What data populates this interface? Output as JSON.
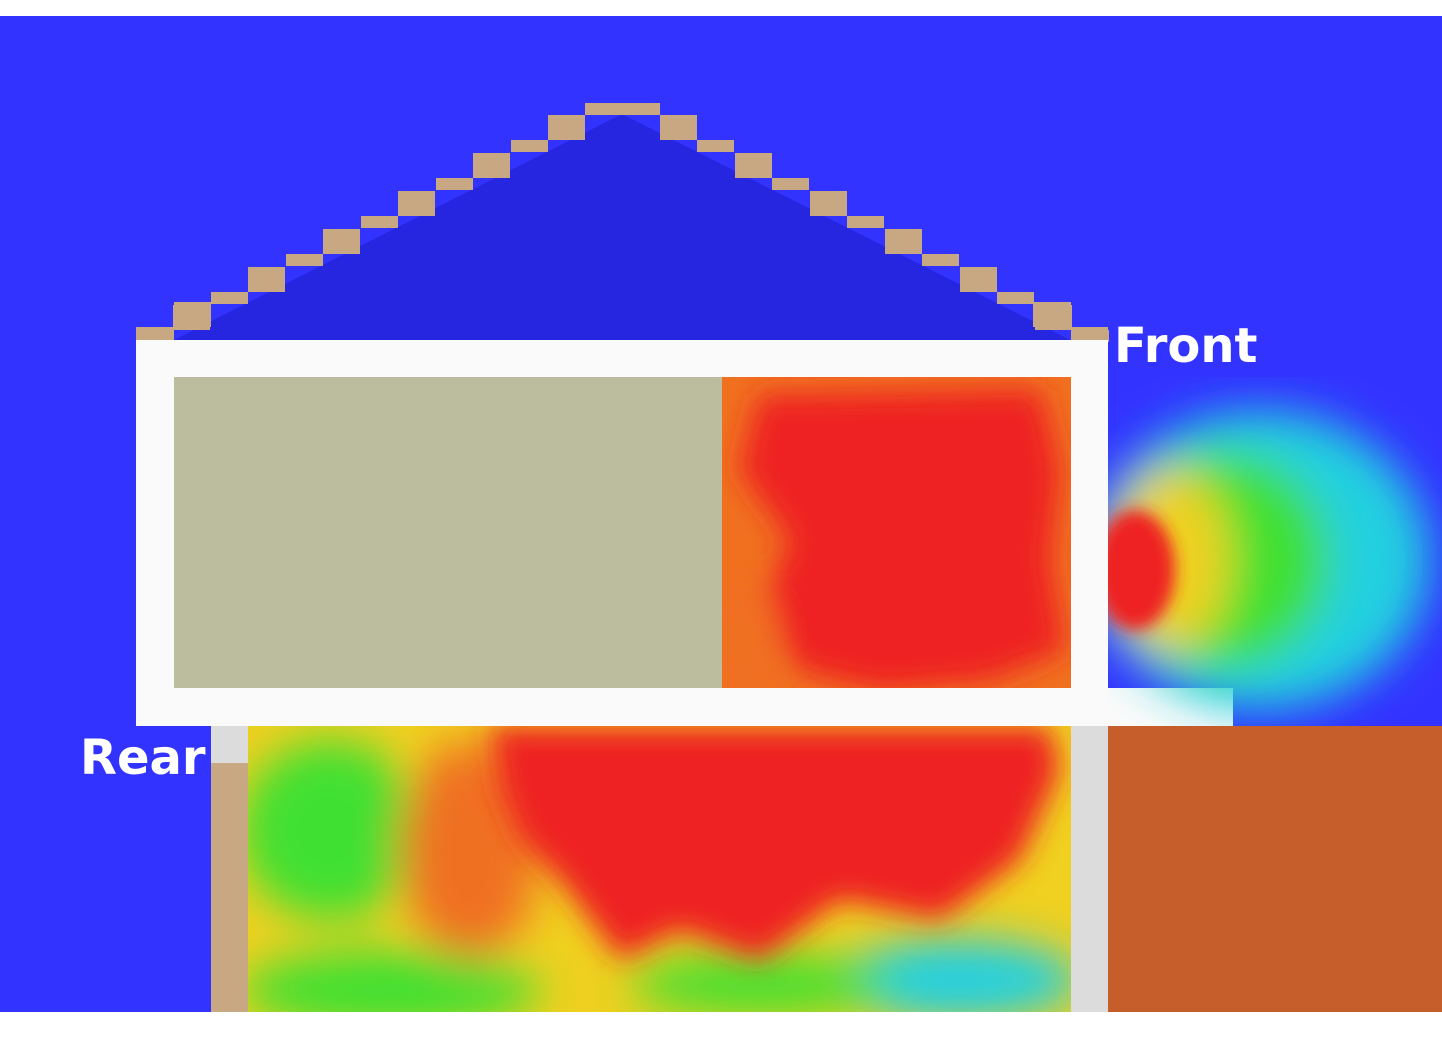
{
  "labels": {
    "front": "Front",
    "rear": "Rear"
  },
  "colors": {
    "sky": "#3333ff",
    "attic": "#2626e0",
    "roof_tile": "#c8a882",
    "ceiling": "#fafafa",
    "wall": "#dcdcdc",
    "room_unburned": "#bcbc9e",
    "rear_post": "#c8a882",
    "exterior_block": "#c65e2c",
    "heat_hot": "#ee2222",
    "heat_warm": "#f07020",
    "heat_mid": "#f0d020",
    "heat_cool": "#40e030",
    "heat_cold": "#20d0e0"
  },
  "icons": {
    "roof": "stepped-roof-outline"
  }
}
